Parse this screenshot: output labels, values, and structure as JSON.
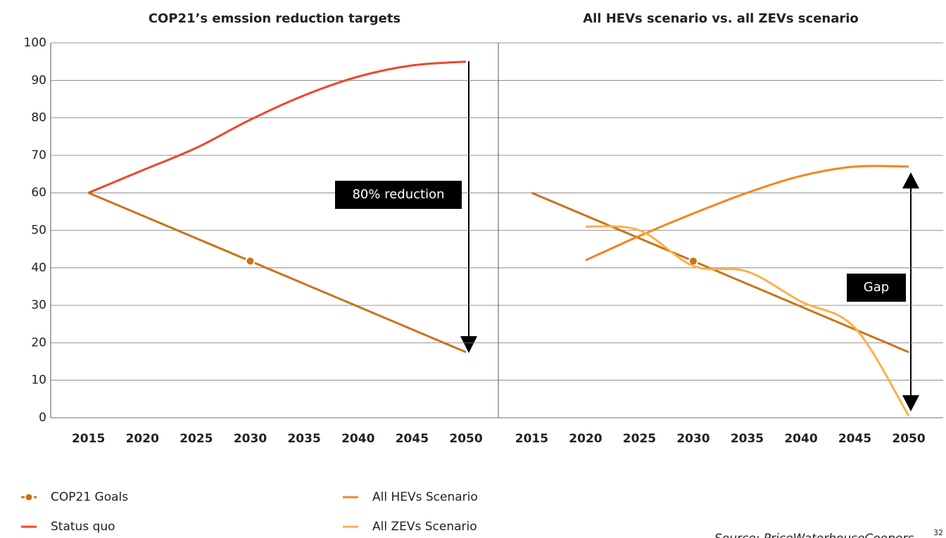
{
  "chart_data": [
    {
      "type": "line",
      "title": "COP21’s emssion reduction targets",
      "xlim": [
        2011.5,
        2053
      ],
      "xticks": [
        2015,
        2020,
        2025,
        2030,
        2035,
        2040,
        2045,
        2050
      ],
      "ylim": [
        0,
        100
      ],
      "yticks": [
        0,
        10,
        20,
        30,
        40,
        50,
        60,
        70,
        80,
        90,
        100
      ],
      "grid": true,
      "series": [
        {
          "name": "COP21 Goals",
          "color": "#c8741a",
          "marker": true,
          "x": [
            2015,
            2030,
            2050
          ],
          "values": [
            60,
            41.8,
            17.5
          ]
        },
        {
          "name": "Status quo",
          "color": "#f0452d",
          "x": [
            2015,
            2020,
            2025,
            2030,
            2035,
            2040,
            2045,
            2050
          ],
          "values": [
            60,
            66,
            72,
            79.5,
            86,
            91,
            94,
            95
          ]
        }
      ],
      "annotations": [
        "80% reduction"
      ]
    },
    {
      "type": "line",
      "title": "All HEVs scenario vs. all ZEVs scenario",
      "xlim": [
        2011.9,
        2053.2
      ],
      "xticks": [
        2015,
        2020,
        2025,
        2030,
        2035,
        2040,
        2045,
        2050
      ],
      "ylim": [
        0,
        100
      ],
      "series": [
        {
          "name": "COP21 Goals",
          "color": "#c8741a",
          "marker": true,
          "x": [
            2015,
            2030,
            2050
          ],
          "values": [
            60,
            41.8,
            17.5
          ]
        },
        {
          "name": "All HEVs Scenario",
          "color": "#f5841f",
          "x": [
            2020,
            2025,
            2030,
            2035,
            2040,
            2045,
            2050
          ],
          "values": [
            42,
            48.5,
            54.5,
            60,
            64.5,
            67,
            67
          ]
        },
        {
          "name": "All ZEVs Scenario",
          "color": "#fbb04a",
          "x": [
            2020,
            2025,
            2030,
            2035,
            2040,
            2045,
            2050
          ],
          "values": [
            51,
            50,
            40.5,
            39,
            31,
            24,
            0.5
          ]
        }
      ],
      "annotations": [
        "Gap"
      ]
    }
  ],
  "source": "Source: PriceWaterhouseCoopers",
  "page": 32
}
